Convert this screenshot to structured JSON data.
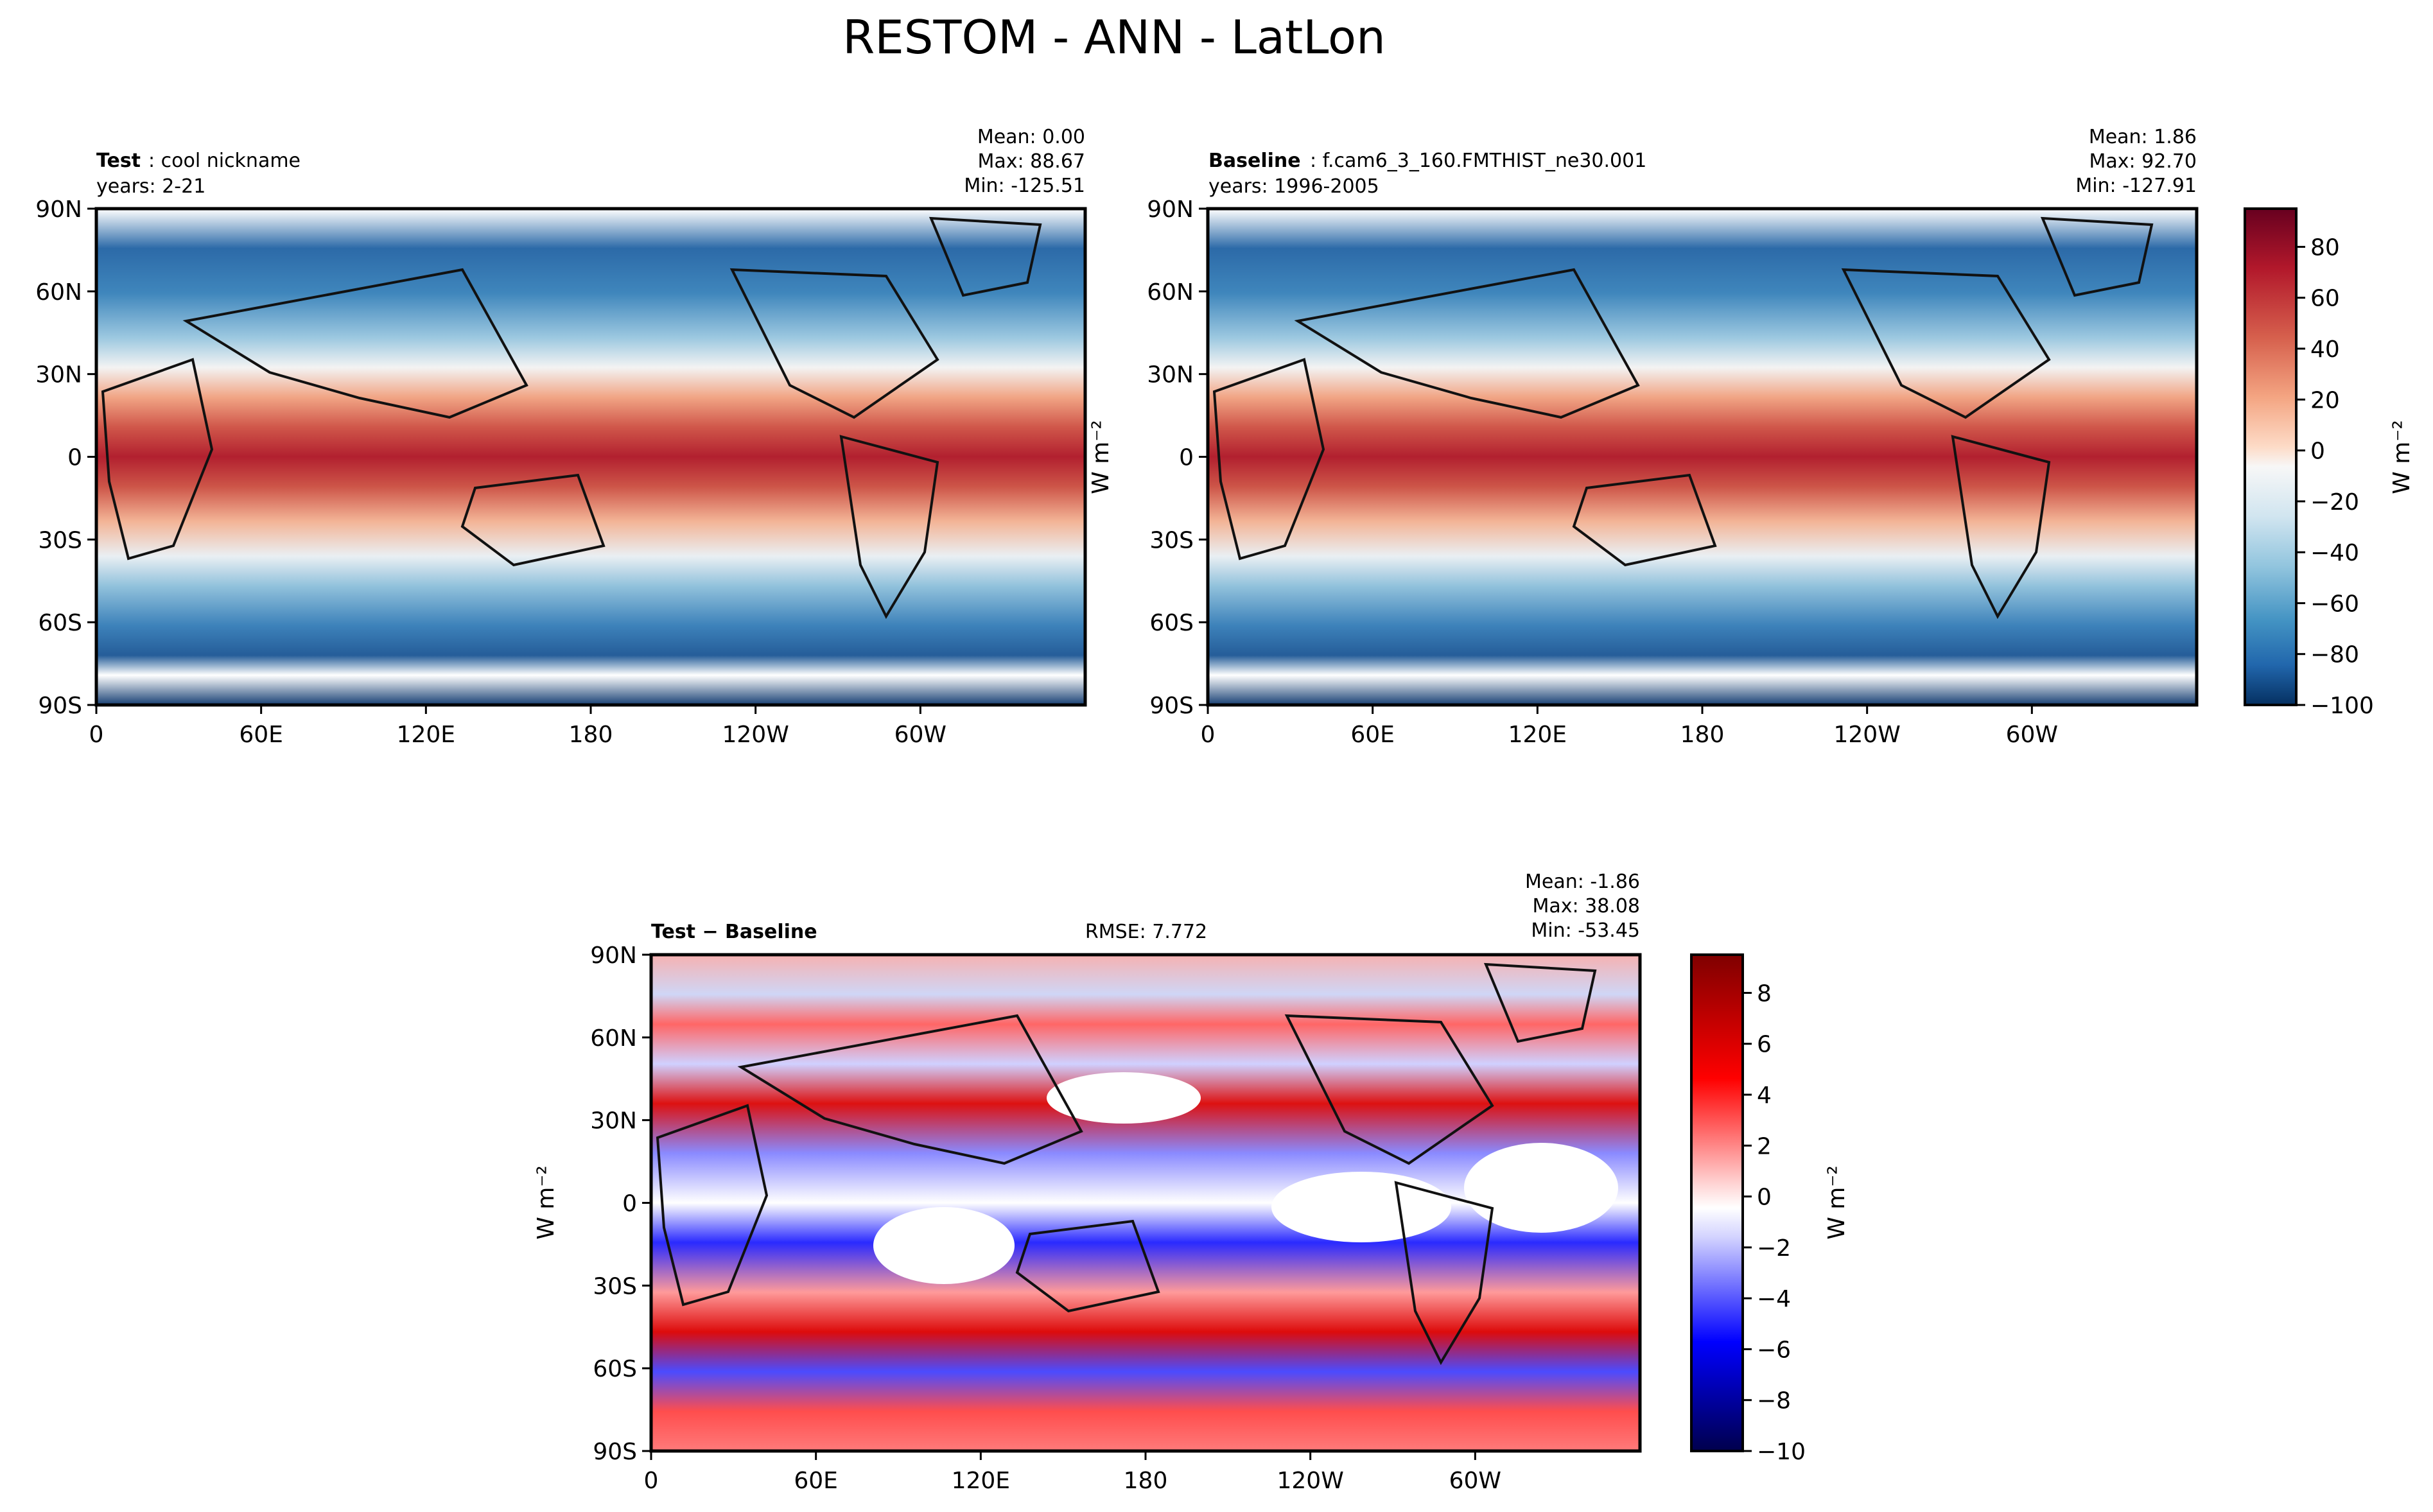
{
  "figure": {
    "title": "RESTOM - ANN - LatLon"
  },
  "chart_data": [
    {
      "type": "heatmap",
      "panel": "test",
      "label_bold": "Test",
      "label_rest": ": cool nickname",
      "years": "years: 2-21",
      "stats": {
        "mean": "Mean:  0.00",
        "max": "Max: 88.67",
        "min": "Min: -125.51"
      },
      "x_ticks": [
        "0",
        "60E",
        "120E",
        "180",
        "120W",
        "60W"
      ],
      "y_ticks": [
        "90N",
        "60N",
        "30N",
        "0",
        "30S",
        "60S",
        "90S"
      ],
      "xlim": [
        0,
        360
      ],
      "ylim": [
        -90,
        90
      ],
      "zlim": [
        -100,
        95
      ]
    },
    {
      "type": "heatmap",
      "panel": "baseline",
      "label_bold": "Baseline",
      "label_rest": ": f.cam6_3_160.FMTHIST_ne30.001",
      "years": "years: 1996-2005",
      "stats": {
        "mean": "Mean:  1.86",
        "max": "Max: 92.70",
        "min": "Min: -127.91"
      },
      "x_ticks": [
        "0",
        "60E",
        "120E",
        "180",
        "120W",
        "60W"
      ],
      "y_ticks": [
        "90N",
        "60N",
        "30N",
        "0",
        "30S",
        "60S",
        "90S"
      ],
      "ylabel": "W m⁻²",
      "colorbar": {
        "ticks": [
          "80",
          "60",
          "40",
          "20",
          "0",
          "−20",
          "−40",
          "−60",
          "−80",
          "−100"
        ],
        "label": "W m⁻²",
        "range": [
          -100,
          95
        ]
      }
    },
    {
      "type": "heatmap",
      "panel": "difference",
      "label_bold": "Test − Baseline",
      "rmse": "RMSE: 7.772",
      "stats": {
        "mean": "Mean: -1.86",
        "max": "Max: 38.08",
        "min": "Min: -53.45"
      },
      "x_ticks": [
        "0",
        "60E",
        "120E",
        "180",
        "120W",
        "60W"
      ],
      "y_ticks": [
        "90N",
        "60N",
        "30N",
        "0",
        "30S",
        "60S",
        "90S"
      ],
      "ylabel": "W m⁻²",
      "colorbar": {
        "ticks": [
          "8",
          "6",
          "4",
          "2",
          "0",
          "−2",
          "−4",
          "−6",
          "−8",
          "−10"
        ],
        "label": "W m⁻²",
        "range": [
          -10,
          9.5
        ]
      }
    }
  ]
}
